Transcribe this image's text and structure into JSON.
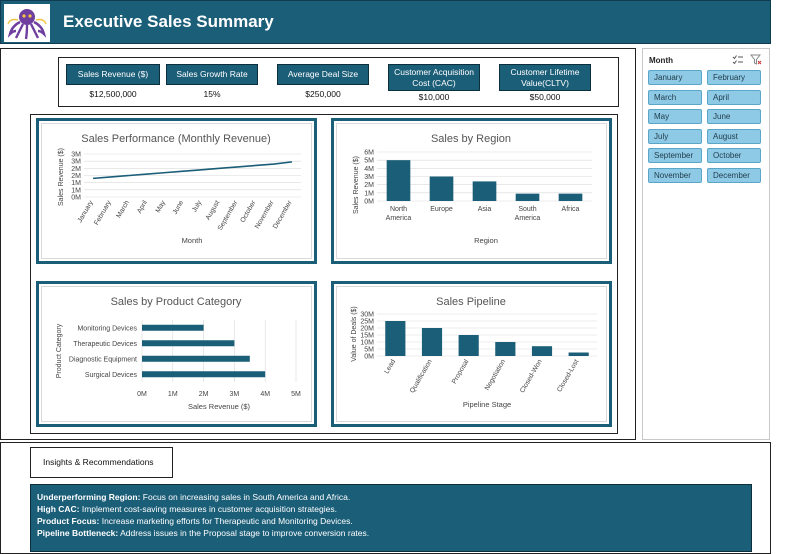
{
  "header": {
    "title": "Executive Sales Summary"
  },
  "kpis": [
    {
      "label": "Sales Revenue ($)",
      "value": "$12,500,000"
    },
    {
      "label": "Sales Growth Rate",
      "value": "15%"
    },
    {
      "label": "Average Deal Size",
      "value": "$250,000"
    },
    {
      "label": "Customer Acquisition Cost (CAC)",
      "value": "$10,000"
    },
    {
      "label": "Customer Lifetime Value(CLTV)",
      "value": "$50,000"
    }
  ],
  "slicer": {
    "title": "Month",
    "items": [
      "January",
      "February",
      "March",
      "April",
      "May",
      "June",
      "July",
      "August",
      "September",
      "October",
      "November",
      "December"
    ]
  },
  "insights": {
    "tab_label": "Insights & Recommendations",
    "items": [
      {
        "head": "Underperforming Region:",
        "text": " Focus on increasing sales in South America and Africa."
      },
      {
        "head": "High CAC:",
        "text": " Implement cost-saving measures in customer acquisition strategies."
      },
      {
        "head": "Product Focus:",
        "text": " Increase marketing efforts for Therapeutic and Monitoring Devices."
      },
      {
        "head": "Pipeline Bottleneck:",
        "text": " Address issues in the Proposal stage to improve conversion rates."
      }
    ]
  },
  "colors": {
    "accent": "#1b5e78",
    "slicer": "#8ecae6"
  },
  "chart_data": [
    {
      "type": "line",
      "title": "Sales Performance (Monthly Revenue)",
      "xlabel": "Month",
      "ylabel": "Sales Revenue ($)",
      "categories": [
        "January",
        "February",
        "March",
        "April",
        "May",
        "June",
        "July",
        "August",
        "September",
        "October",
        "November",
        "December"
      ],
      "values": [
        1.3,
        1.4,
        1.5,
        1.6,
        1.7,
        1.8,
        1.9,
        2.0,
        2.1,
        2.2,
        2.3,
        2.45
      ],
      "yticks": [
        "0M",
        "1M",
        "1M",
        "2M",
        "2M",
        "3M",
        "3M"
      ],
      "ylim": [
        0,
        3
      ]
    },
    {
      "type": "bar",
      "title": "Sales by Region",
      "xlabel": "Region",
      "ylabel": "Sales Revenue ($)",
      "categories": [
        "North America",
        "Europe",
        "Asia",
        "South America",
        "Africa"
      ],
      "values": [
        5,
        3,
        2.4,
        0.9,
        0.9
      ],
      "yticks": [
        "0M",
        "1M",
        "2M",
        "3M",
        "4M",
        "5M",
        "6M"
      ],
      "ylim": [
        0,
        6
      ]
    },
    {
      "type": "bar",
      "orientation": "horizontal",
      "title": "Sales by Product Category",
      "xlabel": "Sales Revenue ($)",
      "ylabel": "Product Category",
      "categories": [
        "Monitoring Devices",
        "Therapeutic Devices",
        "Diagnostic Equipment",
        "Surgical Devices"
      ],
      "values": [
        2.0,
        3.0,
        3.5,
        4.0
      ],
      "xticks": [
        "0M",
        "1M",
        "2M",
        "3M",
        "4M",
        "5M"
      ],
      "xlim": [
        0,
        5
      ]
    },
    {
      "type": "bar",
      "title": "Sales Pipeline",
      "xlabel": "Pipeline Stage",
      "ylabel": "Value of Deals ($)",
      "categories": [
        "Lead",
        "Qualification",
        "Proposal",
        "Negotiation",
        "Closed-Won",
        "Closed-Lost"
      ],
      "values": [
        25,
        20,
        15,
        10,
        7,
        2.5
      ],
      "yticks": [
        "0M",
        "5M",
        "10M",
        "15M",
        "20M",
        "25M",
        "30M"
      ],
      "ylim": [
        0,
        30
      ]
    }
  ]
}
